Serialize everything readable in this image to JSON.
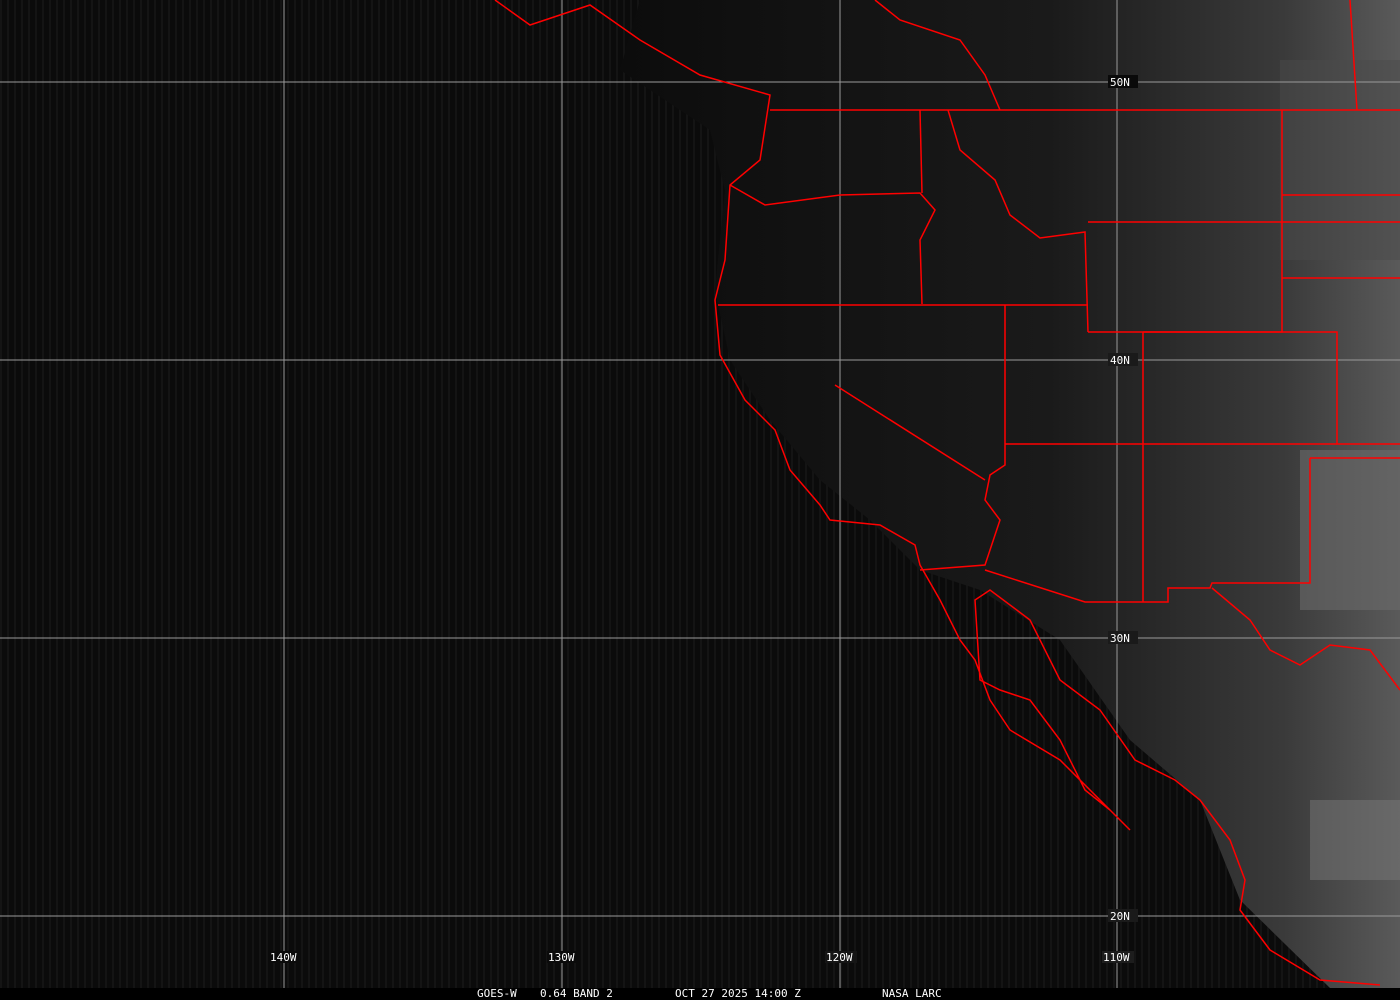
{
  "image": {
    "satellite": "GOES-W",
    "channel": "0.64 BAND 2",
    "datetime": "OCT 27 2025 14:00 Z",
    "credit": "NASA LARC"
  },
  "grid": {
    "longitudes": [
      "140W",
      "130W",
      "120W",
      "110W"
    ],
    "latitudes": [
      "50N",
      "40N",
      "30N",
      "20N"
    ]
  },
  "colors": {
    "background": "#0a0a0a",
    "borders": "#ff0000",
    "grid": "#9a9a9a",
    "text": "#ffffff"
  }
}
